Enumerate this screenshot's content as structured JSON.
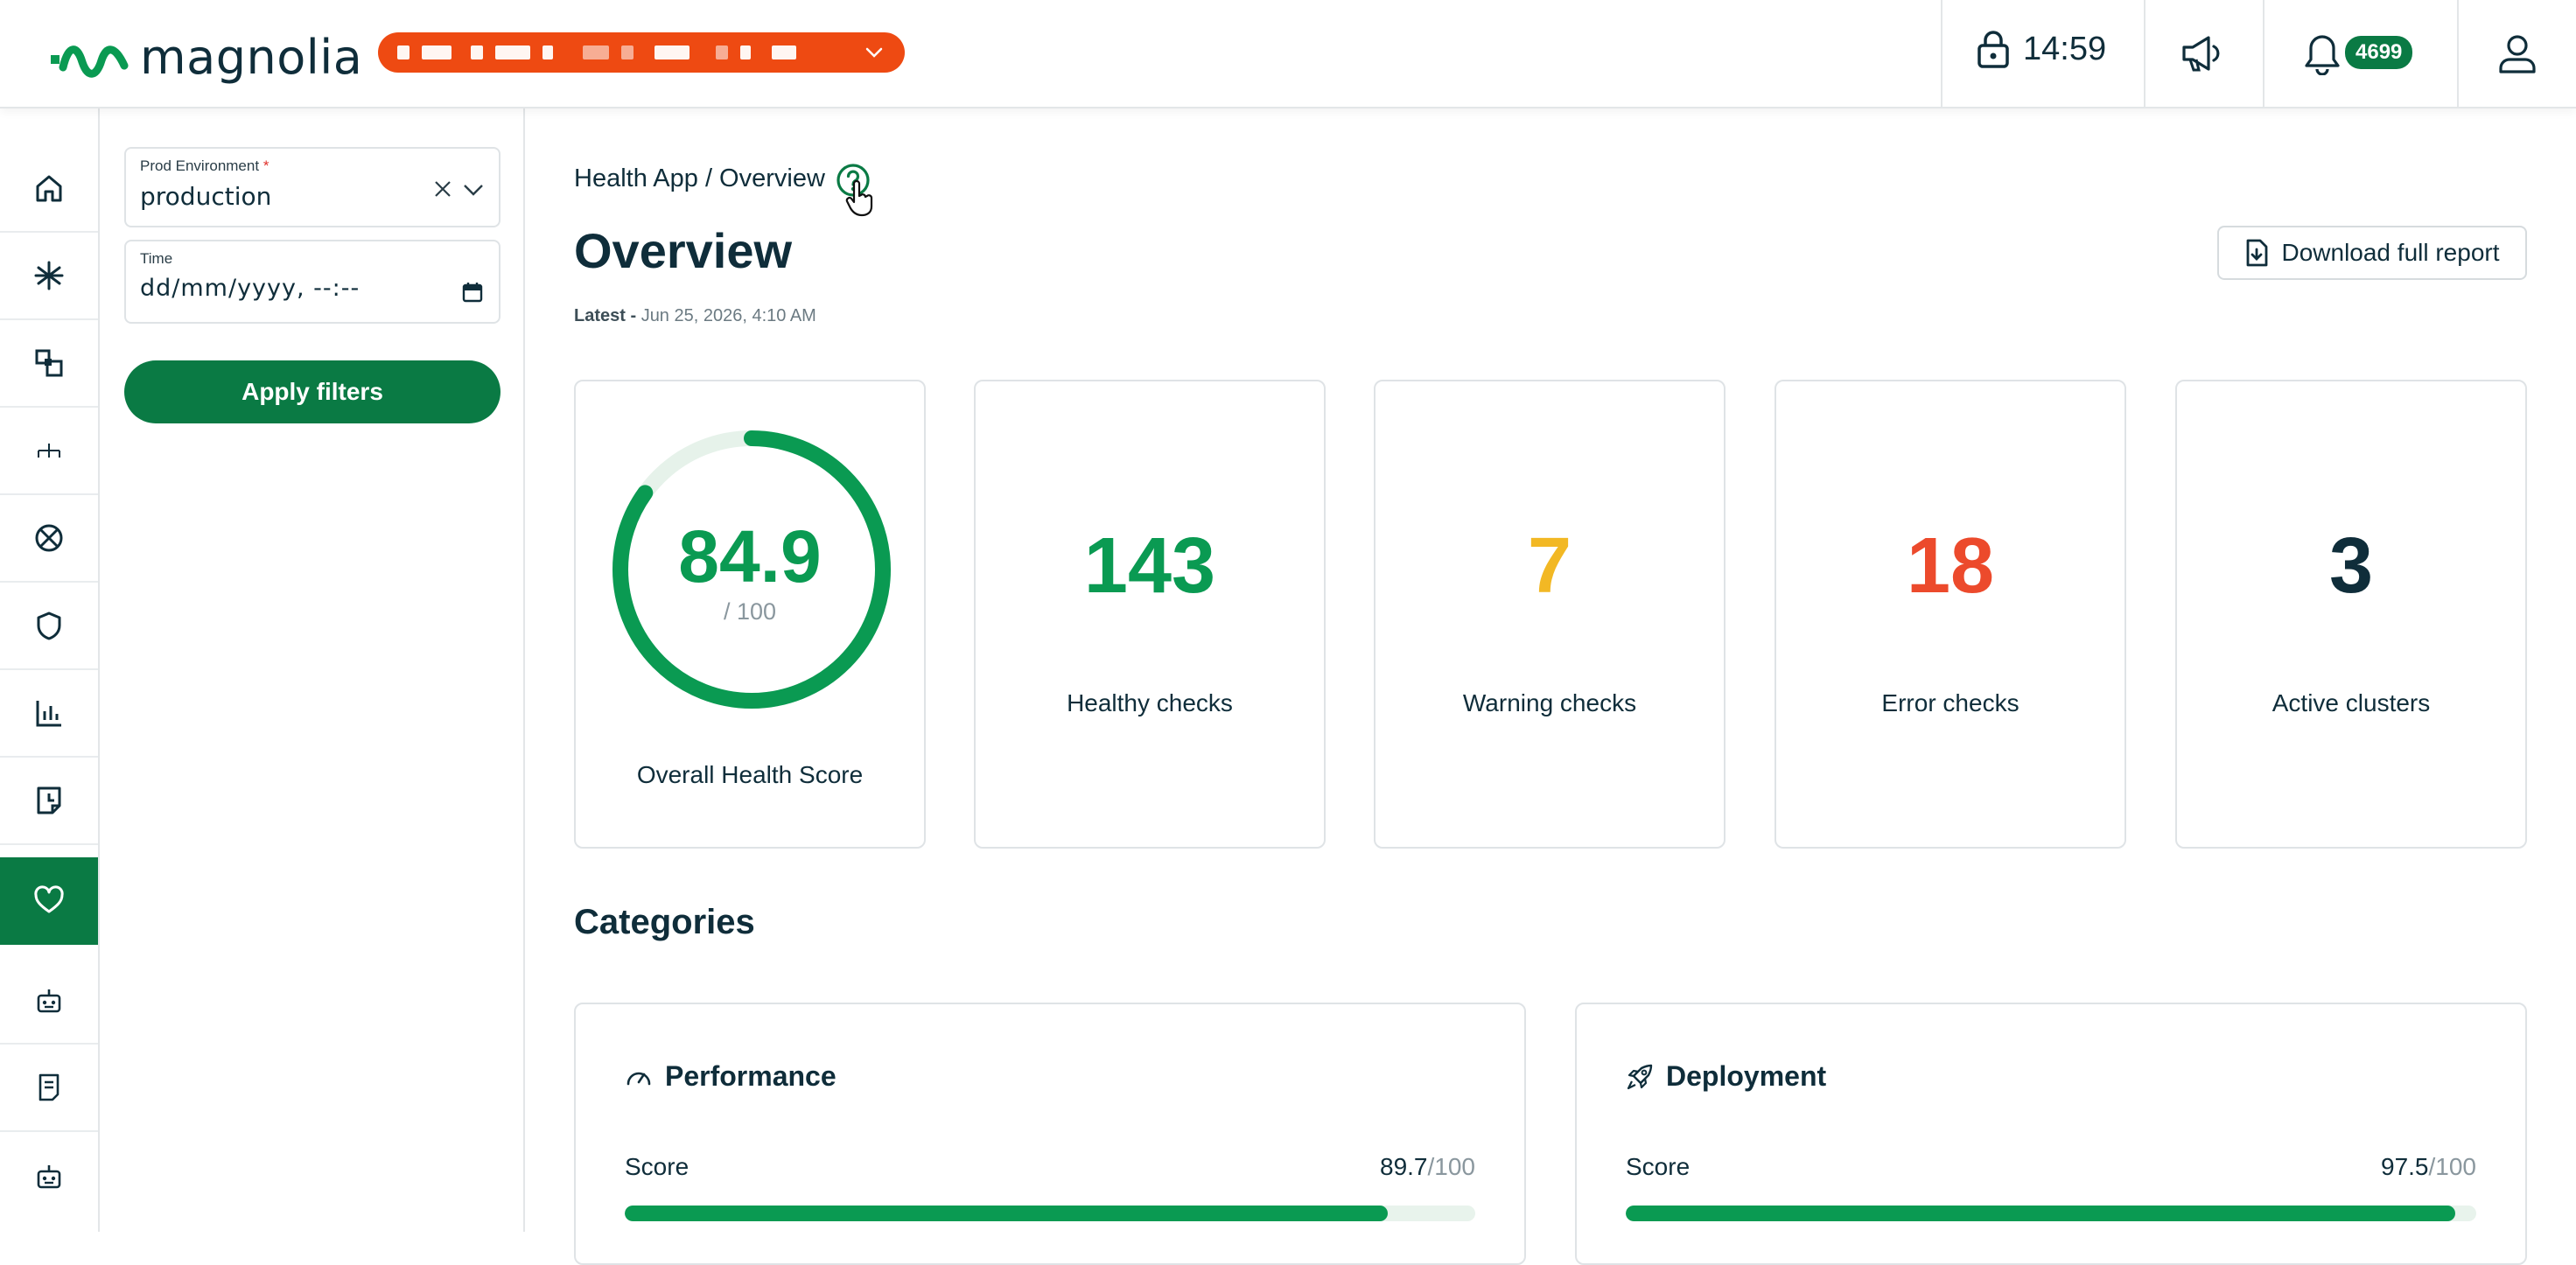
{
  "header": {
    "logo_text": "magnolia",
    "session_time": "14:59",
    "notification_count": "4699",
    "icons": [
      "lock-icon",
      "megaphone-icon",
      "bell-icon",
      "user-icon"
    ]
  },
  "rail": {
    "icons": [
      "home-icon",
      "asterisk-icon",
      "layers-icon",
      "hierarchy-icon",
      "blocked-icon",
      "shield-icon",
      "chart-icon",
      "clock-page-icon",
      "heart-icon",
      "robot-icon",
      "document-icon",
      "robot-icon"
    ],
    "active_index": 8
  },
  "filters": {
    "env_label": "Prod Environment",
    "env_required": "*",
    "env_value": "production",
    "time_label": "Time",
    "time_placeholder": "dd/mm/yyyy, --:--",
    "apply_label": "Apply filters"
  },
  "main": {
    "breadcrumb": "Health App / Overview",
    "title": "Overview",
    "latest_label": "Latest -",
    "latest_value": "Jun 25, 2026, 4:10 AM",
    "download_label": "Download full report",
    "health": {
      "score": "84.9",
      "max": "/ 100",
      "score_fraction": 0.849,
      "label": "Overall Health Score"
    },
    "stats": [
      {
        "value": "143",
        "label": "Healthy checks",
        "color": "#0a9a52"
      },
      {
        "value": "7",
        "label": "Warning checks",
        "color": "#f2b824"
      },
      {
        "value": "18",
        "label": "Error checks",
        "color": "#ec4a2c"
      },
      {
        "value": "3",
        "label": "Active clusters",
        "color": "#0f2d3a"
      }
    ],
    "categories_title": "Categories",
    "categories": [
      {
        "name": "Performance",
        "icon": "gauge-icon",
        "score_label": "Score",
        "score": "89.7",
        "max": "/100",
        "fraction": 0.897
      },
      {
        "name": "Deployment",
        "icon": "rocket-icon",
        "score_label": "Score",
        "score": "97.5",
        "max": "/100",
        "fraction": 0.975
      }
    ]
  },
  "colors": {
    "brand_green": "#0a7a44",
    "accent_green": "#0a9a52",
    "pill_orange": "#ee4a12"
  }
}
